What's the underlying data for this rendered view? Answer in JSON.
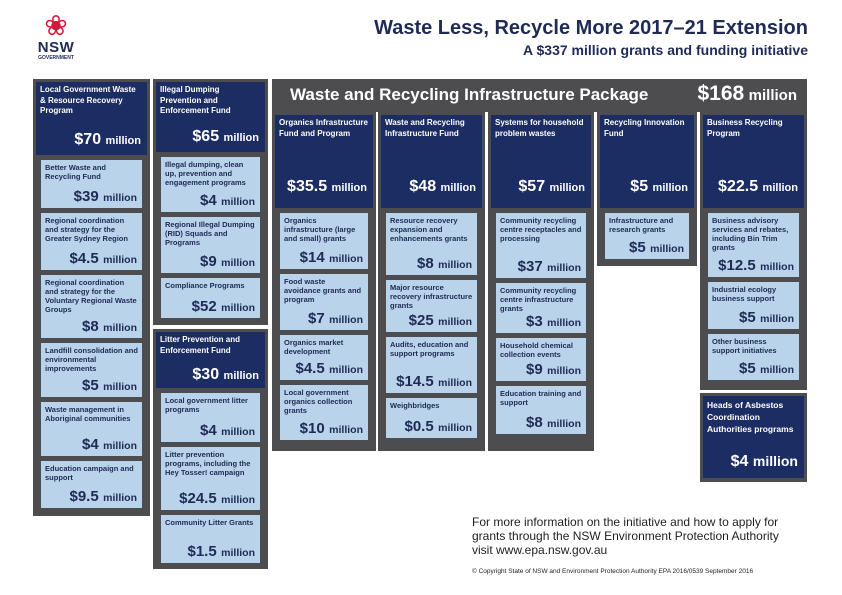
{
  "logo": {
    "nsw": "NSW",
    "government": "GOVERNMENT"
  },
  "title": "Waste Less, Recycle More 2017–21 Extension",
  "subtitle": "A $337 million grants and funding initiative",
  "package": {
    "name": "Waste and Recycling Infrastructure Package",
    "amount": "$168",
    "unit": "million"
  },
  "columns": {
    "lgwrr": {
      "name": "Local Government Waste & Resource Recovery Program",
      "amount": "$70",
      "unit": "million",
      "items": [
        {
          "name": "Better Waste and Recycling Fund",
          "amount": "$39",
          "unit": "million"
        },
        {
          "name": "Regional coordination and strategy for the Greater Sydney Region",
          "amount": "$4.5",
          "unit": "million"
        },
        {
          "name": "Regional coordination and strategy for the Voluntary Regional Waste Groups",
          "amount": "$8",
          "unit": "million"
        },
        {
          "name": "Landfill consolidation and environmental improvements",
          "amount": "$5",
          "unit": "million"
        },
        {
          "name": "Waste management in Aboriginal communities",
          "amount": "$4",
          "unit": "million"
        },
        {
          "name": "Education campaign and support",
          "amount": "$9.5",
          "unit": "million"
        }
      ]
    },
    "dumping": {
      "name": "Illegal Dumping Prevention and Enforcement Fund",
      "amount": "$65",
      "unit": "million",
      "items": [
        {
          "name": "Illegal dumping, clean up, prevention and engagement programs",
          "amount": "$4",
          "unit": "million"
        },
        {
          "name": "Regional Illegal Dumping (RID) Squads and Programs",
          "amount": "$9",
          "unit": "million"
        },
        {
          "name": "Compliance Programs",
          "amount": "$52",
          "unit": "million"
        }
      ]
    },
    "litter": {
      "name": "Litter Prevention and Enforcement Fund",
      "amount": "$30",
      "unit": "million",
      "items": [
        {
          "name": "Local government litter programs",
          "amount": "$4",
          "unit": "million"
        },
        {
          "name": "Litter prevention programs, including the Hey Tosser! campaign",
          "amount": "$24.5",
          "unit": "million"
        },
        {
          "name": "Community Litter Grants",
          "amount": "$1.5",
          "unit": "million"
        }
      ]
    },
    "organics": {
      "name": "Organics Infrastructure Fund and Program",
      "amount": "$35.5",
      "unit": "million",
      "items": [
        {
          "name": "Organics infrastructure (large and small) grants",
          "amount": "$14",
          "unit": "million"
        },
        {
          "name": "Food waste avoidance grants and program",
          "amount": "$7",
          "unit": "million"
        },
        {
          "name": "Organics market development",
          "amount": "$4.5",
          "unit": "million"
        },
        {
          "name": "Local government organics collection grants",
          "amount": "$10",
          "unit": "million"
        }
      ]
    },
    "wrif": {
      "name": "Waste and Recycling Infrastructure Fund",
      "amount": "$48",
      "unit": "million",
      "items": [
        {
          "name": "Resource recovery expansion and enhancements grants",
          "amount": "$8",
          "unit": "million"
        },
        {
          "name": "Major resource recovery infrastructure grants",
          "amount": "$25",
          "unit": "million"
        },
        {
          "name": "Audits, education and support programs",
          "amount": "$14.5",
          "unit": "million"
        },
        {
          "name": "Weighbridges",
          "amount": "$0.5",
          "unit": "million"
        }
      ]
    },
    "household": {
      "name": "Systems for household problem wastes",
      "amount": "$57",
      "unit": "million",
      "items": [
        {
          "name": "Community recycling centre receptacles and processing",
          "amount": "$37",
          "unit": "million"
        },
        {
          "name": "Community recycling centre infrastructure grants",
          "amount": "$3",
          "unit": "million"
        },
        {
          "name": "Household chemical collection events",
          "amount": "$9",
          "unit": "million"
        },
        {
          "name": "Education training and support",
          "amount": "$8",
          "unit": "million"
        }
      ]
    },
    "innovation": {
      "name": "Recycling Innovation Fund",
      "amount": "$5",
      "unit": "million",
      "items": [
        {
          "name": "Infrastructure and research grants",
          "amount": "$5",
          "unit": "million"
        }
      ]
    },
    "business": {
      "name": "Business Recycling Program",
      "amount": "$22.5",
      "unit": "million",
      "items": [
        {
          "name": "Business advisory services and rebates, including Bin Trim grants",
          "amount": "$12.5",
          "unit": "million"
        },
        {
          "name": "Industrial ecology business support",
          "amount": "$5",
          "unit": "million"
        },
        {
          "name": "Other business support initiatives",
          "amount": "$5",
          "unit": "million"
        }
      ]
    },
    "asbestos": {
      "name": "Heads of Asbestos Coordination Authorities programs",
      "amount": "$4",
      "unit": "million"
    }
  },
  "footer": {
    "info": "For more information on the initiative and how to apply for grants through the NSW Environment Protection Authority visit www.epa.nsw.gov.au",
    "copyright": "© Copyright State of NSW and Environment Protection Authority   EPA 2016/0539   September 2016"
  },
  "colors": {
    "navy": "#1c2d63",
    "card": "#b9d3ea",
    "frame": "#4d4d4f",
    "logo_red": "#d7153a"
  },
  "icons": {
    "logo": "waratah-flower-icon"
  }
}
